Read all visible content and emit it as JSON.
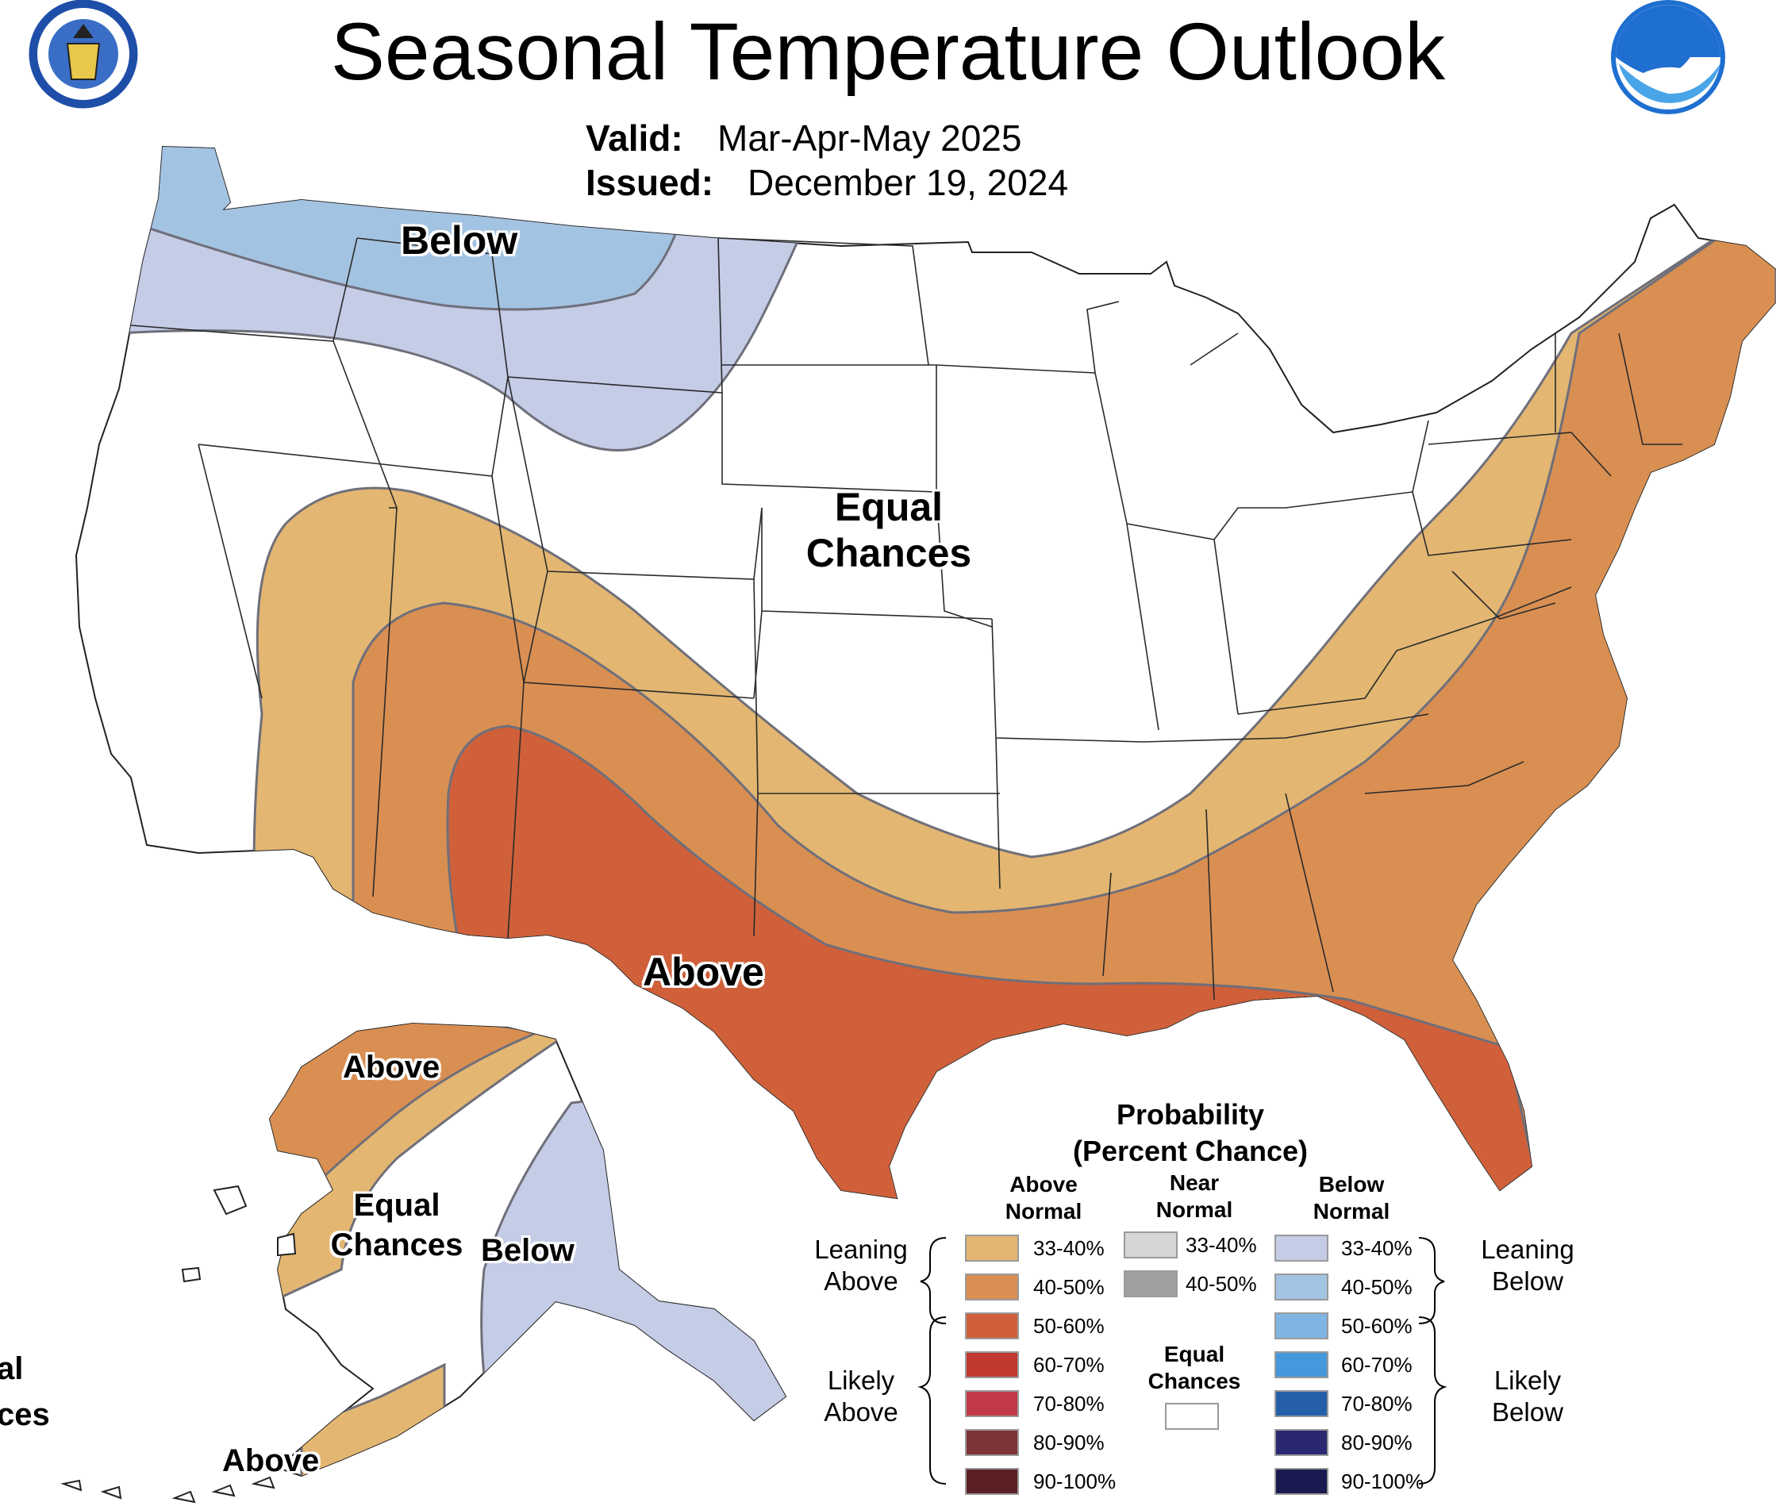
{
  "title": "Seasonal Temperature Outlook",
  "valid_label": "Valid:",
  "valid_value": "Mar-Apr-May 2025",
  "issued_label": "Issued:",
  "issued_value": "December 19, 2024",
  "map_labels": {
    "below_conus": "Below",
    "equal_conus_1": "Equal",
    "equal_conus_2": "Chances",
    "above_conus": "Above",
    "above_ak_north": "Above",
    "equal_ak_1": "Equal",
    "equal_ak_2": "Chances",
    "below_ak": "Below",
    "above_ak_south": "Above",
    "cut_left_1": "al",
    "cut_left_2": "ces"
  },
  "legend": {
    "title_1": "Probability",
    "title_2": "(Percent Chance)",
    "above_head_1": "Above",
    "above_head_2": "Normal",
    "near_head_1": "Near",
    "near_head_2": "Normal",
    "below_head_1": "Below",
    "below_head_2": "Normal",
    "leaning_above_1": "Leaning",
    "leaning_above_2": "Above",
    "likely_above_1": "Likely",
    "likely_above_2": "Above",
    "leaning_below_1": "Leaning",
    "leaning_below_2": "Below",
    "likely_below_1": "Likely",
    "likely_below_2": "Below",
    "equal_1": "Equal",
    "equal_2": "Chances",
    "above": [
      {
        "range": "33-40%",
        "color": "#e3b672"
      },
      {
        "range": "40-50%",
        "color": "#d98f52"
      },
      {
        "range": "50-60%",
        "color": "#cf603a"
      },
      {
        "range": "60-70%",
        "color": "#c03830"
      },
      {
        "range": "70-80%",
        "color": "#c23a4a"
      },
      {
        "range": "80-90%",
        "color": "#7e3438"
      },
      {
        "range": "90-100%",
        "color": "#5a2024"
      }
    ],
    "near": [
      {
        "range": "33-40%",
        "color": "#d6d6d6"
      },
      {
        "range": "40-50%",
        "color": "#a0a0a0"
      }
    ],
    "below": [
      {
        "range": "33-40%",
        "color": "#c4cce6"
      },
      {
        "range": "40-50%",
        "color": "#a3c3e2"
      },
      {
        "range": "50-60%",
        "color": "#80b4e2"
      },
      {
        "range": "60-70%",
        "color": "#4698dc"
      },
      {
        "range": "70-80%",
        "color": "#245fa8"
      },
      {
        "range": "80-90%",
        "color": "#2a2870"
      },
      {
        "range": "90-100%",
        "color": "#1a1a50"
      }
    ]
  },
  "colors": {
    "lean_above": "#e3b672",
    "above_40_50": "#d98f52",
    "above_50_60": "#cf603a",
    "lean_below": "#c4cce6",
    "below_40_50": "#a3c3e2",
    "equal": "#ffffff"
  }
}
